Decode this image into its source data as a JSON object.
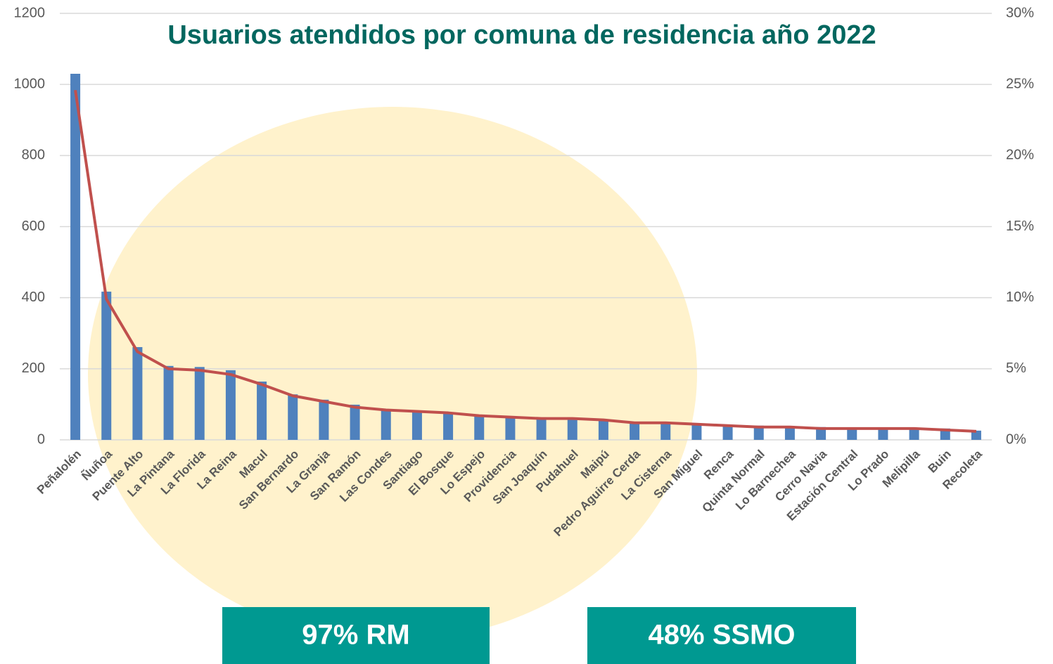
{
  "chart_data": {
    "type": "bar-line",
    "title": "Usuarios atendidos por comuna de residencia año 2022",
    "categories": [
      "Peñalolén",
      "Ñuñoa",
      "Puente Alto",
      "La Pintana",
      "La Florida",
      "La Reina",
      "Macul",
      "San Bernardo",
      "La Granja",
      "San Ramón",
      "Las Condes",
      "Santiago",
      "El Bosque",
      "Lo Espejo",
      "Providencia",
      "San Joaquín",
      "Pudahuel",
      "Maipú",
      "Pedro Aguirre Cerda",
      "La Cisterna",
      "San Miguel",
      "Renca",
      "Quinta Normal",
      "Lo Barnechea",
      "Cerro Navia",
      "Estación Central",
      "Lo Prado",
      "Melipilla",
      "Buin",
      "Recoleta"
    ],
    "series": [
      {
        "type": "bar",
        "color": "#4f81bd",
        "values": [
          1030,
          417,
          261,
          208,
          205,
          196,
          164,
          128,
          113,
          99,
          83,
          81,
          77,
          71,
          67,
          63,
          61,
          57,
          51,
          49,
          45,
          43,
          40,
          38,
          36,
          35,
          34,
          33,
          32,
          26
        ]
      },
      {
        "type": "line",
        "axis": "y2",
        "color": "#c0504d",
        "values": [
          24.6,
          9.9,
          6.2,
          5.0,
          4.9,
          4.6,
          3.9,
          3.1,
          2.7,
          2.3,
          2.1,
          2.0,
          1.9,
          1.7,
          1.6,
          1.5,
          1.5,
          1.4,
          1.2,
          1.2,
          1.1,
          1.0,
          0.9,
          0.9,
          0.8,
          0.8,
          0.8,
          0.8,
          0.7,
          0.6
        ]
      }
    ],
    "ylim": [
      0,
      1200
    ],
    "yticks": [
      0,
      200,
      400,
      600,
      800,
      1000,
      1200
    ],
    "y2lim": [
      0,
      30
    ],
    "y2ticks": [
      {
        "value": 0,
        "label": "0%"
      },
      {
        "value": 5,
        "label": "5%"
      },
      {
        "value": 10,
        "label": "10%"
      },
      {
        "value": 15,
        "label": "15%"
      },
      {
        "value": 20,
        "label": "20%"
      },
      {
        "value": 25,
        "label": "25%"
      },
      {
        "value": 30,
        "label": "30%"
      }
    ],
    "grid": true,
    "annotations": [
      "97% RM",
      "48% SSMO"
    ]
  }
}
